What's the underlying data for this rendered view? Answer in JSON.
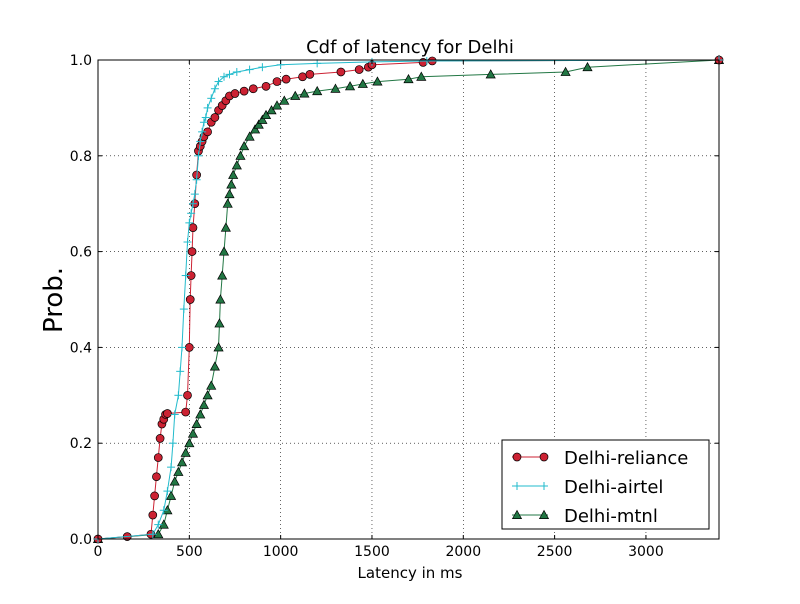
{
  "chart_data": {
    "type": "line",
    "title": "Cdf of latency for Delhi",
    "xlabel": "Latency in ms",
    "ylabel": "Prob.",
    "xlim": [
      0,
      3400
    ],
    "ylim": [
      0.0,
      1.0
    ],
    "xticks": [
      0,
      500,
      1000,
      1500,
      2000,
      2500,
      3000
    ],
    "yticks": [
      0.0,
      0.2,
      0.4,
      0.6,
      0.8,
      1.0
    ],
    "xtick_labels": [
      "0",
      "500",
      "1000",
      "1500",
      "2000",
      "2500",
      "3000"
    ],
    "ytick_labels": [
      "0.0",
      "0.2",
      "0.4",
      "0.6",
      "0.8",
      "1.0"
    ],
    "grid": true,
    "legend_position": "bottom-right",
    "series": [
      {
        "name": "Delhi-reliance",
        "color": "#cc2233",
        "marker": "circle",
        "x": [
          0,
          160,
          290,
          300,
          310,
          320,
          330,
          340,
          350,
          360,
          370,
          380,
          480,
          490,
          500,
          505,
          510,
          515,
          520,
          530,
          540,
          550,
          560,
          570,
          580,
          600,
          620,
          640,
          660,
          680,
          700,
          720,
          750,
          800,
          850,
          920,
          980,
          1030,
          1120,
          1160,
          1330,
          1430,
          1480,
          1500,
          1780,
          1830,
          3400
        ],
        "y": [
          0.0,
          0.005,
          0.01,
          0.05,
          0.09,
          0.13,
          0.17,
          0.21,
          0.24,
          0.25,
          0.26,
          0.262,
          0.265,
          0.3,
          0.4,
          0.5,
          0.55,
          0.6,
          0.65,
          0.7,
          0.76,
          0.81,
          0.82,
          0.83,
          0.84,
          0.85,
          0.87,
          0.88,
          0.895,
          0.905,
          0.915,
          0.925,
          0.93,
          0.935,
          0.94,
          0.945,
          0.955,
          0.96,
          0.965,
          0.97,
          0.975,
          0.98,
          0.985,
          0.99,
          0.995,
          0.998,
          1.0
        ]
      },
      {
        "name": "Delhi-airtel",
        "color": "#22bbcc",
        "marker": "plus",
        "x": [
          0,
          300,
          330,
          360,
          380,
          400,
          410,
          420,
          440,
          450,
          460,
          470,
          480,
          490,
          500,
          510,
          520,
          530,
          540,
          550,
          560,
          570,
          580,
          590,
          600,
          620,
          640,
          660,
          690,
          720,
          760,
          830,
          900,
          1000,
          1200,
          1500,
          1800,
          3400
        ],
        "y": [
          0.0,
          0.01,
          0.03,
          0.06,
          0.1,
          0.15,
          0.2,
          0.26,
          0.3,
          0.35,
          0.4,
          0.48,
          0.55,
          0.62,
          0.66,
          0.68,
          0.7,
          0.72,
          0.75,
          0.8,
          0.83,
          0.85,
          0.87,
          0.88,
          0.9,
          0.92,
          0.94,
          0.955,
          0.965,
          0.97,
          0.975,
          0.98,
          0.985,
          0.99,
          0.993,
          0.996,
          0.998,
          1.0
        ]
      },
      {
        "name": "Delhi-mtnl",
        "color": "#227744",
        "marker": "triangle",
        "x": [
          0,
          330,
          360,
          380,
          400,
          420,
          440,
          460,
          480,
          500,
          520,
          540,
          560,
          580,
          600,
          620,
          640,
          660,
          665,
          670,
          680,
          690,
          700,
          710,
          720,
          730,
          740,
          760,
          780,
          800,
          830,
          860,
          880,
          900,
          920,
          950,
          980,
          1020,
          1080,
          1130,
          1200,
          1300,
          1380,
          1450,
          1530,
          1700,
          1770,
          2150,
          2560,
          2680,
          3400
        ],
        "y": [
          0.0,
          0.01,
          0.03,
          0.06,
          0.09,
          0.12,
          0.14,
          0.16,
          0.18,
          0.2,
          0.22,
          0.24,
          0.26,
          0.28,
          0.3,
          0.32,
          0.36,
          0.4,
          0.45,
          0.5,
          0.55,
          0.6,
          0.65,
          0.7,
          0.72,
          0.74,
          0.76,
          0.78,
          0.8,
          0.82,
          0.84,
          0.855,
          0.865,
          0.875,
          0.885,
          0.895,
          0.905,
          0.915,
          0.925,
          0.93,
          0.935,
          0.94,
          0.945,
          0.95,
          0.955,
          0.96,
          0.965,
          0.97,
          0.975,
          0.985,
          1.0
        ]
      }
    ]
  }
}
